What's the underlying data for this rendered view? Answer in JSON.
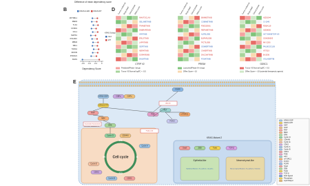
{
  "chart_data": {
    "type": "dot",
    "panel": "B",
    "title": "Difference of mean dependency score",
    "x_label": "Dependency Score",
    "categories": [
      "ZFTSBL1",
      "MED4",
      "TLK1",
      "CCND1",
      "CFL1",
      "MAPK1",
      "POLR2C",
      "RBM4",
      "SBL1",
      "TADA1",
      "DDX39",
      "POM121",
      "KRAS"
    ],
    "series": [
      {
        "name": "KRAS-G12D",
        "color": "#3b6fb6",
        "values": [
          -0.3,
          -0.32,
          -0.27,
          -0.33,
          -0.29,
          -0.35,
          -0.31,
          -0.28,
          -0.3,
          -0.26,
          -0.29,
          -0.34,
          -0.62
        ]
      },
      {
        "name": "KRAS-WT",
        "color": "#d0453f",
        "values": [
          -0.14,
          -0.16,
          -0.12,
          -0.18,
          -0.13,
          -0.2,
          -0.15,
          -0.12,
          -0.14,
          -0.1,
          -0.13,
          -0.17,
          -0.08
        ]
      }
    ],
    "xlim": [
      -0.7,
      0.05
    ],
    "xticks": [
      -0.6,
      -0.4,
      -0.2,
      0
    ],
    "legend_title": "KRAS Subtype",
    "legend_labels": [
      "G12",
      "WT"
    ]
  },
  "panel_d": {
    "label": "D",
    "column_headers": [
      "Tumor vs Normal",
      "Drug target",
      "Clinical phase",
      "DRes score"
    ],
    "tables": [
      {
        "title": "CTRP V2",
        "drugs": [
          "NAVITOCLAX",
          "SELUMETINIB",
          "TRAMETINIB",
          "DABRAFENIB",
          "AFATINIB",
          "ERLOTINIB",
          "LAPATINIB",
          "GEFITINIB",
          "NERATINIB",
          "SORAFENIB",
          "DASATINIB"
        ]
      },
      {
        "title": "PRISM",
        "drugs": [
          "BINIMETINIB",
          "COBIMETINIB",
          "PD0325901",
          "REFAMETINIB",
          "ALPELISIB",
          "BUPARLISIB",
          "PICTILISIB",
          "OSIMERTINIB",
          "CANERTINIB",
          "DACOMITINIB",
          "PONATINIB"
        ]
      },
      {
        "title": "GDSC1",
        "drugs": [
          "AZD6244",
          "CI-1040",
          "RDEA119",
          "AZD8055",
          "AKT INHIBITOR VIII",
          "GSK690693",
          "MK-2206",
          "PALBOCICLIB",
          "AT7519",
          "BI-2536",
          "VOLASERTIB"
        ]
      }
    ],
    "legend": [
      "Predicted/Phase I drugs",
      "Launched/Phase III+ drugs",
      "Tumor VS Normal logFC > 0.5",
      "Tumor VS Normal logFC < -0.5",
      "DRes Score > 10",
      "DRes Score < -10 (potential therapeutic agents)"
    ]
  },
  "panel_e": {
    "label": "E",
    "groups": [
      "KRAS-Mutant 1",
      "KRAS-Mutant 2"
    ],
    "nodes": [
      "KRAS-GDP",
      "GEFs",
      "GAPs",
      "KRAS-GTP",
      "RAF",
      "MEK",
      "ERK",
      "PI3K",
      "AKT",
      "FOXO",
      "mTORC1",
      "FGFR",
      "Snail",
      "ZEB",
      "Twist",
      "TGF-β",
      "Cyclin D",
      "CDK4/6",
      "Cyclin A",
      "Cyclin E",
      "CDK2",
      "Cyclin B",
      "CDK1"
    ],
    "cycle": {
      "title": "Cell cycle",
      "phases": [
        "G1",
        "S",
        "G2",
        "M"
      ]
    },
    "phenotypes": [
      {
        "title": "Epithelial-like",
        "markers": "Epithelial Markers: E-cadherin, Claudins"
      },
      {
        "title": "Mesenchymal-like",
        "markers": "Mesenchymal Markers: N-cadherin, Vimentin"
      }
    ],
    "drugs": [
      "Trametinib/ Selumetinib",
      "Afatinib",
      "Palbociclib"
    ],
    "legend": [
      "KRAS-GDP",
      "KRAS-GTP",
      "GEF",
      "GAP",
      "RAF",
      "MEK",
      "ERK",
      "Cyclin D",
      "CDK4/6",
      "Cyclin E",
      "CDK2",
      "Cyclin A",
      "Cyclin B",
      "CDK1",
      "PI3K",
      "AKT",
      "mTORC1",
      "FOXO",
      "FGFR",
      "Snail",
      "ZEB",
      "Twist",
      "TGF-β",
      "FGF ligand",
      "Phosphate",
      "Lipid bilayer"
    ]
  }
}
